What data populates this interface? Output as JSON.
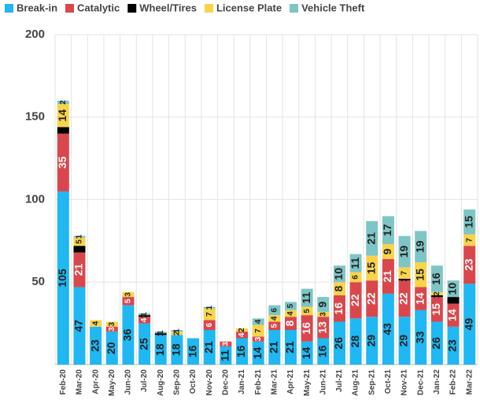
{
  "chart_data": {
    "type": "stacked_bar",
    "categories": [
      "Feb-20",
      "Mar-20",
      "Apr-20",
      "May-20",
      "Jun-20",
      "Jul-20",
      "Aug-20",
      "Sep-20",
      "Oct-20",
      "Nov-20",
      "Dec-20",
      "Jan-21",
      "Feb-21",
      "Mar-21",
      "Apr-21",
      "May-21",
      "Jun-21",
      "Jul-21",
      "Aug-21",
      "Sep-21",
      "Oct-21",
      "Nov-21",
      "Dec-21",
      "Jan-22",
      "Feb-22",
      "Mar-22"
    ],
    "series": [
      {
        "name": "Break-in",
        "color": "#1fb8f3",
        "values": [
          105,
          47,
          23,
          20,
          36,
          25,
          18,
          18,
          16,
          21,
          11,
          16,
          14,
          21,
          21,
          14,
          16,
          26,
          28,
          29,
          43,
          29,
          33,
          26,
          23,
          49
        ]
      },
      {
        "name": "Catalytic",
        "color": "#d9474c",
        "values": [
          35,
          21,
          0,
          3,
          5,
          4,
          0,
          0,
          0,
          6,
          3,
          4,
          3,
          5,
          8,
          16,
          13,
          16,
          22,
          22,
          21,
          22,
          14,
          15,
          14,
          23
        ]
      },
      {
        "name": "Wheel/Tires",
        "color": "#000000",
        "values": [
          4,
          4,
          0,
          0,
          0,
          1,
          1,
          0,
          0,
          0,
          0,
          0,
          0,
          0,
          0,
          0,
          0,
          0,
          0,
          0,
          0,
          1,
          0,
          1,
          4,
          0
        ]
      },
      {
        "name": "License Plate",
        "color": "#f9d449",
        "values": [
          14,
          5,
          4,
          3,
          3,
          0,
          0,
          2,
          0,
          7,
          0,
          2,
          7,
          4,
          4,
          5,
          3,
          8,
          6,
          15,
          9,
          7,
          15,
          2,
          0,
          7
        ]
      },
      {
        "name": "Vehicle Theft",
        "color": "#7ec5c6",
        "values": [
          2,
          1,
          0,
          0,
          0,
          1,
          1,
          1,
          0,
          1,
          0,
          0,
          4,
          6,
          5,
          11,
          9,
          10,
          11,
          21,
          17,
          19,
          19,
          16,
          10,
          15
        ]
      }
    ],
    "ylim": [
      0,
      200
    ],
    "yticks": [
      50,
      100,
      150,
      200
    ],
    "grid": true,
    "legend": "top"
  }
}
